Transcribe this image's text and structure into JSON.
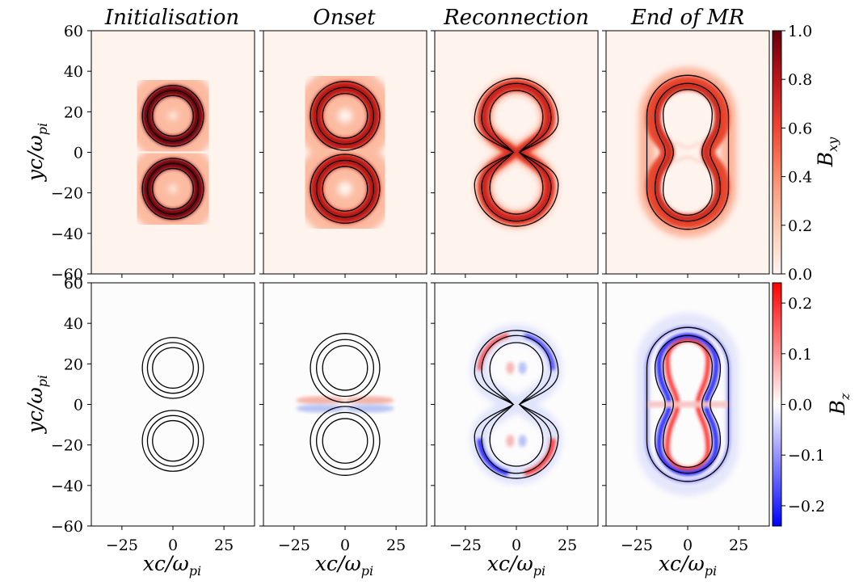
{
  "chart_data": {
    "type": "heatmap",
    "panels_grid": {
      "rows": 2,
      "cols": 4
    },
    "column_titles": [
      "Initialisation",
      "Onset",
      "Reconnection",
      "End of MR"
    ],
    "rows": [
      {
        "quantity": "B_xy",
        "colorbar_label": "B",
        "colorbar_label_sub": "xy",
        "colormap": "Reds",
        "colorbar_range": [
          0.0,
          1.0
        ],
        "colorbar_ticks": [
          "0.0",
          "0.2",
          "0.4",
          "0.6",
          "0.8",
          "1.0"
        ],
        "colorbar_tick_values": [
          0.0,
          0.2,
          0.4,
          0.6,
          0.8,
          1.0
        ]
      },
      {
        "quantity": "B_z",
        "colorbar_label": "B",
        "colorbar_label_sub": "z",
        "colormap": "bwr",
        "colorbar_range": [
          -0.24,
          0.24
        ],
        "colorbar_ticks": [
          "−0.2",
          "−0.1",
          "0.0",
          "0.1",
          "0.2"
        ],
        "colorbar_tick_values": [
          -0.2,
          -0.1,
          0.0,
          0.1,
          0.2
        ]
      }
    ],
    "xlabel": "xc/ω",
    "xlabel_sub": "pi",
    "ylabel": "yc/ω",
    "ylabel_sub": "pi",
    "xlim": [
      -40,
      40
    ],
    "ylim": [
      -60,
      60
    ],
    "xticks": [
      "−25",
      "0",
      "25"
    ],
    "xtick_values": [
      -25,
      0,
      25
    ],
    "yticks": [
      "60",
      "40",
      "20",
      "0",
      "−20",
      "−40",
      "−60"
    ],
    "ytick_values": [
      60,
      40,
      20,
      0,
      -20,
      -40,
      -60
    ],
    "structures": [
      {
        "stage": "Initialisation",
        "shape": "two separate flux rings",
        "centers_y": [
          18,
          -18
        ],
        "contour_radii": [
          10,
          12.5,
          15
        ],
        "max_Bxy": 1.0,
        "max_abs_Bz": 0.0
      },
      {
        "stage": "Onset",
        "shape": "two rings in contact",
        "centers_y": [
          18,
          -18
        ],
        "contour_radii": [
          11,
          14,
          17
        ],
        "max_Bxy": 0.85,
        "max_abs_Bz": 0.05
      },
      {
        "stage": "Reconnection",
        "shape": "figure-eight with X-point at y=0",
        "centers_y": [
          17,
          -17
        ],
        "max_Bxy": 0.75,
        "max_abs_Bz": 0.24
      },
      {
        "stage": "End of MR",
        "shape": "single elongated island",
        "half_length_y": 38,
        "half_width_x": 20,
        "max_Bxy": 0.7,
        "max_abs_Bz": 0.24
      }
    ]
  }
}
